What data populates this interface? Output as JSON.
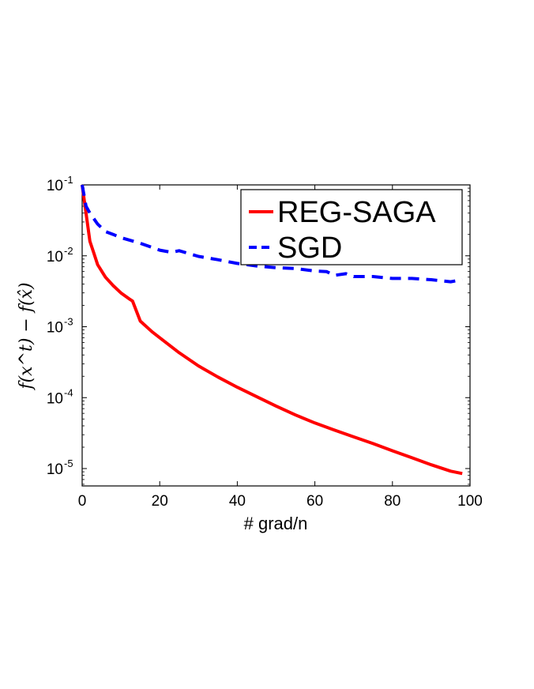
{
  "chart_data": {
    "type": "line",
    "title": "",
    "xlabel": "# grad/n",
    "ylabel": "f(x^t) − f(x̂)",
    "xlim": [
      0,
      100
    ],
    "ylim": [
      5e-06,
      0.1
    ],
    "yscale": "log",
    "grid": false,
    "legend_position": "top-right",
    "x_ticks": [
      0,
      20,
      40,
      60,
      80,
      100
    ],
    "x_tick_labels": [
      "0",
      "20",
      "40",
      "60",
      "80",
      "100"
    ],
    "y_ticks": [
      0.1,
      0.01,
      0.001,
      0.0001,
      1e-05
    ],
    "y_tick_labels": [
      {
        "base": "10",
        "exp": "-1"
      },
      {
        "base": "10",
        "exp": "-2"
      },
      {
        "base": "10",
        "exp": "-3"
      },
      {
        "base": "10",
        "exp": "-4"
      },
      {
        "base": "10",
        "exp": "-5"
      }
    ],
    "series": [
      {
        "name": "REG-SAGA",
        "color": "#ff0000",
        "style": "solid",
        "points": [
          [
            0,
            0.1
          ],
          [
            1,
            0.04
          ],
          [
            2,
            0.016
          ],
          [
            3,
            0.011
          ],
          [
            4,
            0.0075
          ],
          [
            6,
            0.005
          ],
          [
            8,
            0.0038
          ],
          [
            10,
            0.003
          ],
          [
            12,
            0.0025
          ],
          [
            13,
            0.0023
          ],
          [
            15,
            0.0012
          ],
          [
            18,
            0.00085
          ],
          [
            20,
            0.0007
          ],
          [
            25,
            0.00043
          ],
          [
            30,
            0.00028
          ],
          [
            35,
            0.000195
          ],
          [
            40,
            0.00014
          ],
          [
            45,
            0.000103
          ],
          [
            50,
            7.6e-05
          ],
          [
            55,
            5.7e-05
          ],
          [
            60,
            4.4e-05
          ],
          [
            65,
            3.5e-05
          ],
          [
            70,
            2.8e-05
          ],
          [
            75,
            2.25e-05
          ],
          [
            80,
            1.78e-05
          ],
          [
            85,
            1.42e-05
          ],
          [
            90,
            1.13e-05
          ],
          [
            95,
            9.2e-06
          ],
          [
            98,
            8.5e-06
          ]
        ]
      },
      {
        "name": "SGD",
        "color": "#0000ff",
        "style": "dashed",
        "points": [
          [
            0,
            0.1
          ],
          [
            1,
            0.05
          ],
          [
            2,
            0.04
          ],
          [
            4,
            0.028
          ],
          [
            6,
            0.022
          ],
          [
            8,
            0.02
          ],
          [
            10,
            0.018
          ],
          [
            15,
            0.015
          ],
          [
            20,
            0.012
          ],
          [
            23,
            0.0112
          ],
          [
            25,
            0.0118
          ],
          [
            30,
            0.0098
          ],
          [
            35,
            0.0088
          ],
          [
            40,
            0.0078
          ],
          [
            45,
            0.0072
          ],
          [
            50,
            0.0068
          ],
          [
            55,
            0.0066
          ],
          [
            60,
            0.0061
          ],
          [
            63,
            0.006
          ],
          [
            65,
            0.0053
          ],
          [
            68,
            0.0056
          ],
          [
            70,
            0.0051
          ],
          [
            75,
            0.0051
          ],
          [
            80,
            0.0048
          ],
          [
            85,
            0.0048
          ],
          [
            90,
            0.0046
          ],
          [
            95,
            0.0043
          ],
          [
            98,
            0.0046
          ]
        ]
      }
    ]
  }
}
